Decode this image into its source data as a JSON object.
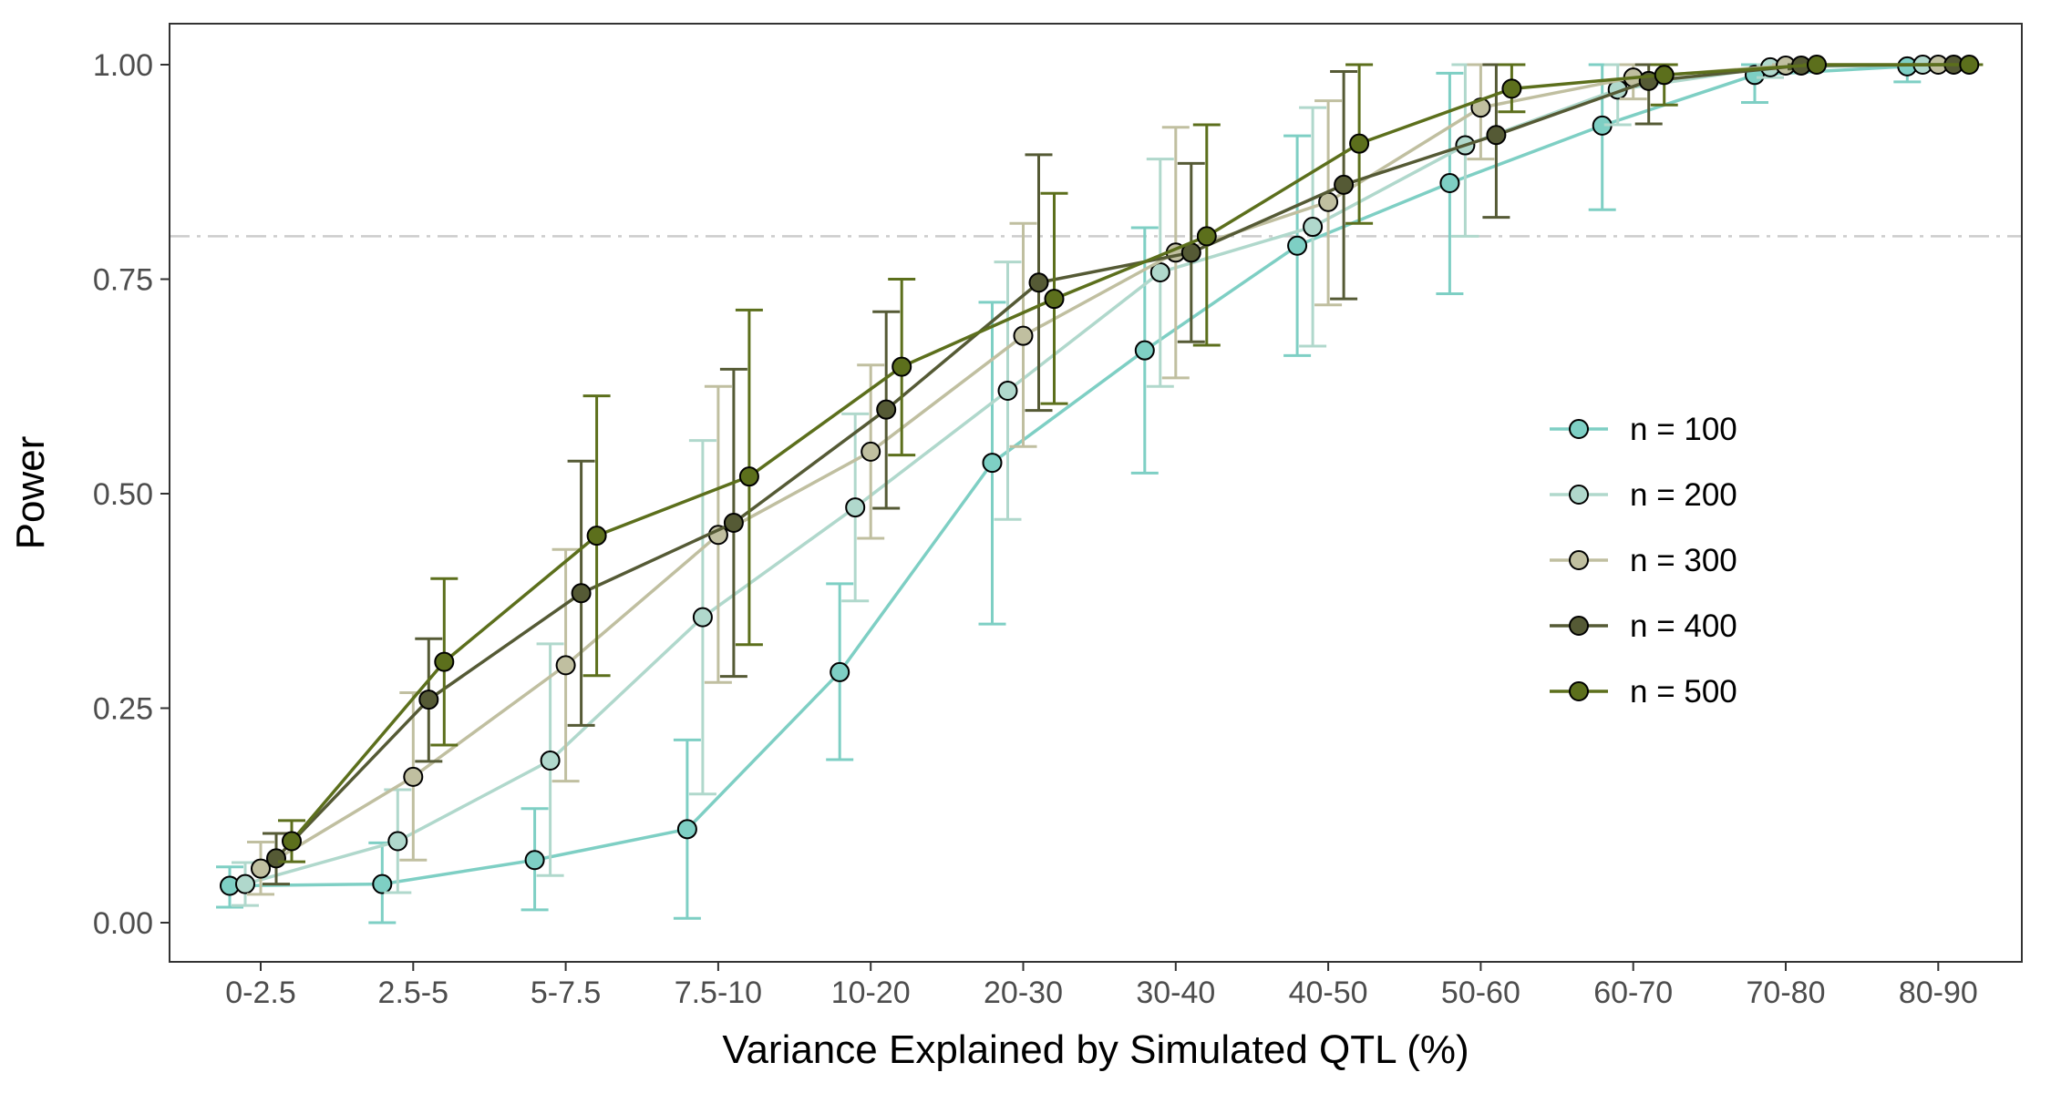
{
  "chart_data": {
    "type": "line",
    "title": "",
    "xlabel": "Variance Explained by Simulated QTL (%)",
    "ylabel": "Power",
    "categories": [
      "0-2.5",
      "2.5-5",
      "5-7.5",
      "7.5-10",
      "10-20",
      "20-30",
      "30-40",
      "40-50",
      "50-60",
      "60-70",
      "70-80",
      "80-90"
    ],
    "yticks": [
      "0.00",
      "0.25",
      "0.50",
      "0.75",
      "1.00"
    ],
    "ylim": [
      -0.05,
      1.05
    ],
    "grid": false,
    "legend_position": "right",
    "reference_line": {
      "y": 0.8,
      "style": "dash-dot",
      "color": "#cccccc"
    },
    "series": [
      {
        "name": "n = 100",
        "color": "#7ecfc4",
        "values": [
          0.043,
          0.045,
          0.073,
          0.109,
          0.292,
          0.536,
          0.667,
          0.789,
          0.862,
          0.929,
          0.988,
          0.998
        ],
        "lower": [
          0.018,
          0.0,
          0.015,
          0.005,
          0.19,
          0.348,
          0.524,
          0.661,
          0.733,
          0.831,
          0.956,
          0.98
        ],
        "upper": [
          0.065,
          0.093,
          0.133,
          0.213,
          0.395,
          0.723,
          0.81,
          0.917,
          0.99,
          1.0,
          1.0,
          1.0
        ]
      },
      {
        "name": "n = 200",
        "color": "#b0d8cc",
        "values": [
          0.045,
          0.095,
          0.189,
          0.356,
          0.484,
          0.62,
          0.758,
          0.811,
          0.906,
          0.971,
          0.997,
          1.0
        ],
        "lower": [
          0.02,
          0.035,
          0.055,
          0.15,
          0.375,
          0.47,
          0.625,
          0.672,
          0.8,
          0.93,
          0.985,
          1.0
        ],
        "upper": [
          0.07,
          0.155,
          0.325,
          0.562,
          0.593,
          0.77,
          0.89,
          0.95,
          1.0,
          1.0,
          1.0,
          1.0
        ]
      },
      {
        "name": "n = 300",
        "color": "#c0bfa0",
        "values": [
          0.063,
          0.17,
          0.3,
          0.452,
          0.549,
          0.684,
          0.781,
          0.84,
          0.95,
          0.985,
          0.999,
          1.0
        ],
        "lower": [
          0.033,
          0.073,
          0.165,
          0.28,
          0.448,
          0.555,
          0.635,
          0.72,
          0.89,
          0.96,
          0.995,
          1.0
        ],
        "upper": [
          0.094,
          0.268,
          0.435,
          0.625,
          0.65,
          0.815,
          0.927,
          0.958,
          1.0,
          1.0,
          1.0,
          1.0
        ]
      },
      {
        "name": "n = 400",
        "color": "#555a35",
        "values": [
          0.075,
          0.26,
          0.384,
          0.466,
          0.598,
          0.746,
          0.781,
          0.86,
          0.918,
          0.981,
          0.999,
          1.0
        ],
        "lower": [
          0.045,
          0.188,
          0.23,
          0.287,
          0.483,
          0.597,
          0.677,
          0.727,
          0.822,
          0.931,
          0.995,
          1.0
        ],
        "upper": [
          0.104,
          0.331,
          0.538,
          0.645,
          0.712,
          0.895,
          0.885,
          0.992,
          1.0,
          1.0,
          1.0,
          1.0
        ]
      },
      {
        "name": "n = 500",
        "color": "#5c6f1c",
        "values": [
          0.095,
          0.304,
          0.451,
          0.52,
          0.648,
          0.727,
          0.8,
          0.908,
          0.972,
          0.988,
          1.0,
          1.0
        ],
        "lower": [
          0.071,
          0.207,
          0.288,
          0.324,
          0.545,
          0.605,
          0.673,
          0.815,
          0.945,
          0.953,
          1.0,
          1.0
        ],
        "upper": [
          0.119,
          0.401,
          0.614,
          0.714,
          0.75,
          0.85,
          0.93,
          1.0,
          1.0,
          1.0,
          1.0,
          1.0
        ]
      }
    ]
  }
}
